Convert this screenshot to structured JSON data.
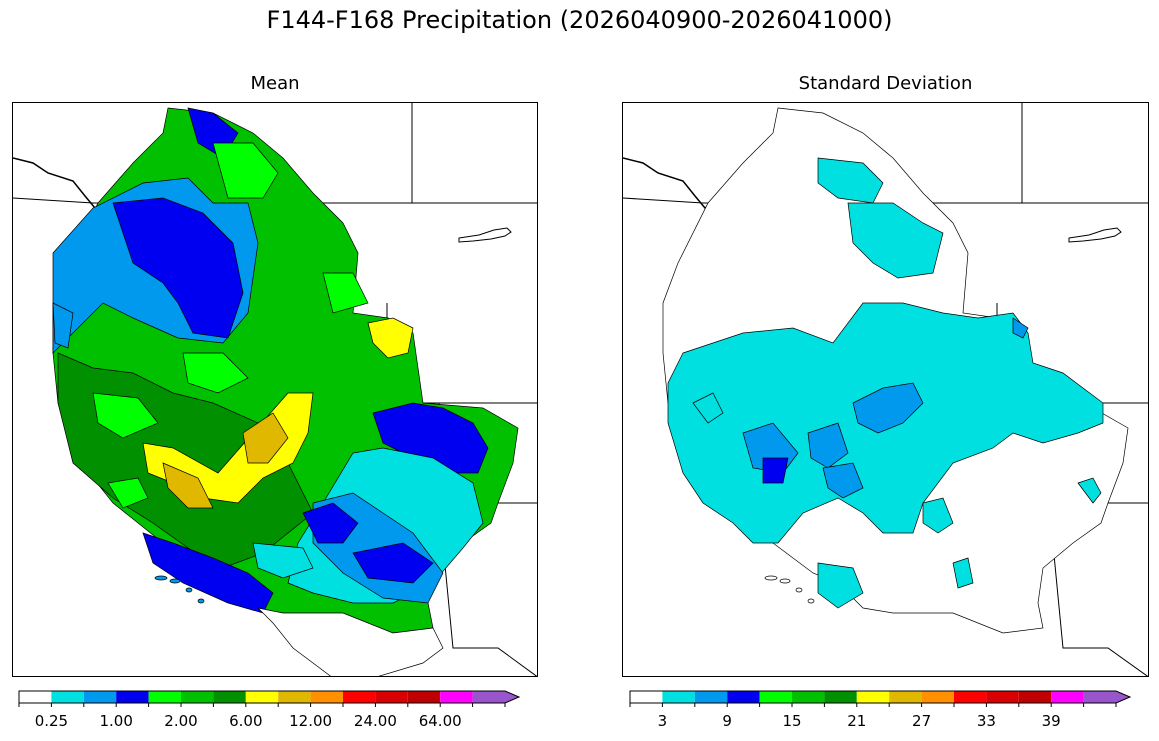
{
  "title": "F144-F168 Precipitation (2026040900-2026041000)",
  "panels": {
    "mean": {
      "title": "Mean",
      "colorbar_colors": [
        "#ffffff",
        "#00e0e0",
        "#0099ee",
        "#0000f0",
        "#00ff00",
        "#00c000",
        "#009000",
        "#ffff00",
        "#e0b800",
        "#ff9000",
        "#ff0000",
        "#d80000",
        "#c00000",
        "#ff00ff",
        "#9955cc"
      ],
      "tick_labels": [
        "0.25",
        "1.00",
        "2.00",
        "6.00",
        "12.00",
        "24.00",
        "64.00"
      ]
    },
    "std": {
      "title": "Standard Deviation",
      "colorbar_colors": [
        "#ffffff",
        "#00e0e0",
        "#0099ee",
        "#0000f0",
        "#00ff00",
        "#00c000",
        "#009000",
        "#ffff00",
        "#e0b800",
        "#ff9000",
        "#ff0000",
        "#d80000",
        "#c00000",
        "#ff00ff",
        "#9955cc"
      ],
      "tick_labels": [
        "3",
        "9",
        "15",
        "21",
        "27",
        "33",
        "39"
      ]
    }
  }
}
